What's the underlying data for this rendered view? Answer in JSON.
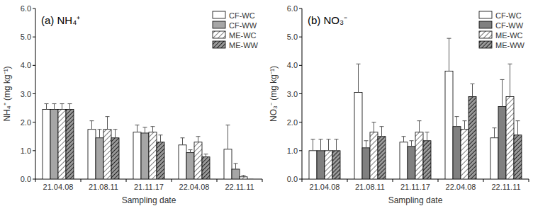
{
  "chart_data": [
    {
      "type": "bar",
      "title": "(a) NH₄⁺",
      "x_label": "Sampling date",
      "y_label": "NH₄⁺ (mg kg⁻¹)",
      "categories": [
        "21.04.08",
        "21.08.11",
        "21.11.17",
        "22.04.08",
        "22.11.11"
      ],
      "series": [
        {
          "name": "CF-WC",
          "color": "#ffffff",
          "values": [
            2.45,
            1.75,
            1.65,
            1.2,
            1.05
          ],
          "errors": [
            0.2,
            0.3,
            0.25,
            0.25,
            0.85
          ]
        },
        {
          "name": "CF-WW",
          "color": "#a6a6a6",
          "values": [
            2.45,
            1.45,
            1.62,
            0.93,
            0.35
          ],
          "errors": [
            0.2,
            0.3,
            0.2,
            0.1,
            0.2
          ]
        },
        {
          "name": "ME-WC",
          "color": "#595959",
          "values": [
            2.45,
            1.75,
            1.65,
            1.3,
            0.08
          ],
          "errors": [
            0.2,
            0.45,
            0.2,
            0.2,
            0.05
          ]
        },
        {
          "name": "ME-WW",
          "color": "#262626",
          "values": [
            2.45,
            1.45,
            1.3,
            0.78,
            0.0
          ],
          "errors": [
            0.2,
            0.3,
            0.25,
            0.1,
            0.0
          ]
        }
      ],
      "ylim": [
        0,
        6
      ],
      "yticks": [
        {
          "value": 0,
          "label": "0.0"
        },
        {
          "value": 1,
          "label": "1.0"
        },
        {
          "value": 2,
          "label": "2.0"
        },
        {
          "value": 3,
          "label": "3.0"
        },
        {
          "value": 4,
          "label": "4.0"
        },
        {
          "value": 5,
          "label": "5.0"
        },
        {
          "value": 6,
          "label": "6.0"
        }
      ],
      "legend": "upper right",
      "grid": false
    },
    {
      "type": "bar",
      "title": "(b) NO₃⁻",
      "x_label": "Sampling date",
      "y_label": "NO₃⁻ (mg kg⁻¹)",
      "categories": [
        "21.04.08",
        "21.08.11",
        "21.11.17",
        "22.04.08",
        "22.11.11"
      ],
      "series": [
        {
          "name": "CF-WC",
          "color": "#ffffff",
          "values": [
            1.0,
            3.05,
            1.3,
            3.8,
            1.45
          ],
          "errors": [
            0.4,
            1.0,
            0.2,
            1.15,
            0.35
          ]
        },
        {
          "name": "CF-WW",
          "color": "#808080",
          "values": [
            1.0,
            1.1,
            1.15,
            1.85,
            2.55
          ],
          "errors": [
            0.4,
            0.25,
            0.2,
            0.35,
            0.95
          ]
        },
        {
          "name": "ME-WC",
          "color": "#595959",
          "values": [
            1.0,
            1.65,
            1.65,
            1.75,
            2.9
          ],
          "errors": [
            0.4,
            0.35,
            0.4,
            0.3,
            1.15
          ]
        },
        {
          "name": "ME-WW",
          "color": "#262626",
          "values": [
            1.0,
            1.5,
            1.35,
            2.9,
            1.55
          ],
          "errors": [
            0.4,
            0.35,
            0.3,
            0.45,
            0.5
          ]
        }
      ],
      "ylim": [
        0,
        6
      ],
      "yticks": [
        {
          "value": 0,
          "label": "0.0"
        },
        {
          "value": 1,
          "label": "1.0"
        },
        {
          "value": 2,
          "label": "2.0"
        },
        {
          "value": 3,
          "label": "3.0"
        },
        {
          "value": 4,
          "label": "4.0"
        },
        {
          "value": 5,
          "label": "5.0"
        },
        {
          "value": 6,
          "label": "6.0"
        }
      ],
      "legend": "upper right",
      "grid": false
    }
  ]
}
